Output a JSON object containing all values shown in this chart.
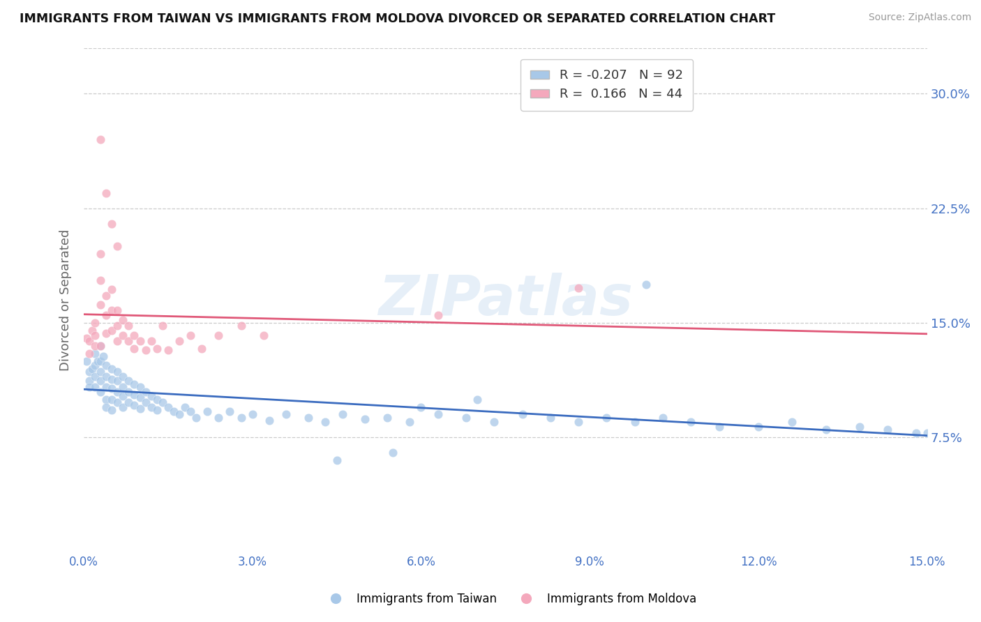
{
  "title": "IMMIGRANTS FROM TAIWAN VS IMMIGRANTS FROM MOLDOVA DIVORCED OR SEPARATED CORRELATION CHART",
  "source": "Source: ZipAtlas.com",
  "ylabel": "Divorced or Separated",
  "legend_label_1": "Immigrants from Taiwan",
  "legend_label_2": "Immigrants from Moldova",
  "r1": -0.207,
  "n1": 92,
  "r2": 0.166,
  "n2": 44,
  "color_taiwan": "#a8c8e8",
  "color_moldova": "#f4a8bc",
  "color_taiwan_line": "#3a6bbf",
  "color_moldova_line": "#e05878",
  "xmin": 0.0,
  "xmax": 0.15,
  "ymin": 0.0,
  "ymax": 0.33,
  "background_color": "#ffffff",
  "taiwan_x": [
    0.0005,
    0.001,
    0.001,
    0.001,
    0.0015,
    0.002,
    0.002,
    0.002,
    0.002,
    0.0025,
    0.003,
    0.003,
    0.003,
    0.003,
    0.003,
    0.0035,
    0.004,
    0.004,
    0.004,
    0.004,
    0.004,
    0.005,
    0.005,
    0.005,
    0.005,
    0.005,
    0.006,
    0.006,
    0.006,
    0.006,
    0.007,
    0.007,
    0.007,
    0.007,
    0.008,
    0.008,
    0.008,
    0.009,
    0.009,
    0.009,
    0.01,
    0.01,
    0.01,
    0.011,
    0.011,
    0.012,
    0.012,
    0.013,
    0.013,
    0.014,
    0.015,
    0.016,
    0.017,
    0.018,
    0.019,
    0.02,
    0.022,
    0.024,
    0.026,
    0.028,
    0.03,
    0.033,
    0.036,
    0.04,
    0.043,
    0.046,
    0.05,
    0.054,
    0.058,
    0.063,
    0.068,
    0.073,
    0.078,
    0.083,
    0.088,
    0.093,
    0.098,
    0.103,
    0.108,
    0.113,
    0.12,
    0.126,
    0.132,
    0.138,
    0.143,
    0.148,
    0.15,
    0.1,
    0.06,
    0.055,
    0.045,
    0.07
  ],
  "taiwan_y": [
    0.125,
    0.118,
    0.112,
    0.108,
    0.12,
    0.13,
    0.122,
    0.115,
    0.108,
    0.125,
    0.135,
    0.125,
    0.118,
    0.112,
    0.105,
    0.128,
    0.122,
    0.115,
    0.108,
    0.1,
    0.095,
    0.12,
    0.113,
    0.107,
    0.1,
    0.093,
    0.118,
    0.112,
    0.105,
    0.098,
    0.115,
    0.108,
    0.102,
    0.095,
    0.112,
    0.105,
    0.098,
    0.11,
    0.103,
    0.096,
    0.108,
    0.101,
    0.094,
    0.105,
    0.098,
    0.102,
    0.095,
    0.1,
    0.093,
    0.098,
    0.095,
    0.092,
    0.09,
    0.095,
    0.092,
    0.088,
    0.092,
    0.088,
    0.092,
    0.088,
    0.09,
    0.086,
    0.09,
    0.088,
    0.085,
    0.09,
    0.087,
    0.088,
    0.085,
    0.09,
    0.088,
    0.085,
    0.09,
    0.088,
    0.085,
    0.088,
    0.085,
    0.088,
    0.085,
    0.082,
    0.082,
    0.085,
    0.08,
    0.082,
    0.08,
    0.078,
    0.078,
    0.175,
    0.095,
    0.065,
    0.06,
    0.1
  ],
  "moldova_x": [
    0.0005,
    0.001,
    0.001,
    0.0015,
    0.002,
    0.002,
    0.002,
    0.003,
    0.003,
    0.003,
    0.003,
    0.004,
    0.004,
    0.004,
    0.005,
    0.005,
    0.005,
    0.006,
    0.006,
    0.006,
    0.007,
    0.007,
    0.008,
    0.008,
    0.009,
    0.009,
    0.01,
    0.011,
    0.012,
    0.013,
    0.014,
    0.015,
    0.017,
    0.019,
    0.021,
    0.024,
    0.028,
    0.032,
    0.003,
    0.004,
    0.005,
    0.006,
    0.088,
    0.063
  ],
  "moldova_y": [
    0.14,
    0.138,
    0.13,
    0.145,
    0.15,
    0.142,
    0.135,
    0.195,
    0.178,
    0.162,
    0.135,
    0.168,
    0.155,
    0.143,
    0.172,
    0.158,
    0.145,
    0.158,
    0.148,
    0.138,
    0.152,
    0.142,
    0.148,
    0.138,
    0.142,
    0.133,
    0.138,
    0.132,
    0.138,
    0.133,
    0.148,
    0.132,
    0.138,
    0.142,
    0.133,
    0.142,
    0.148,
    0.142,
    0.27,
    0.235,
    0.215,
    0.2,
    0.173,
    0.155
  ]
}
